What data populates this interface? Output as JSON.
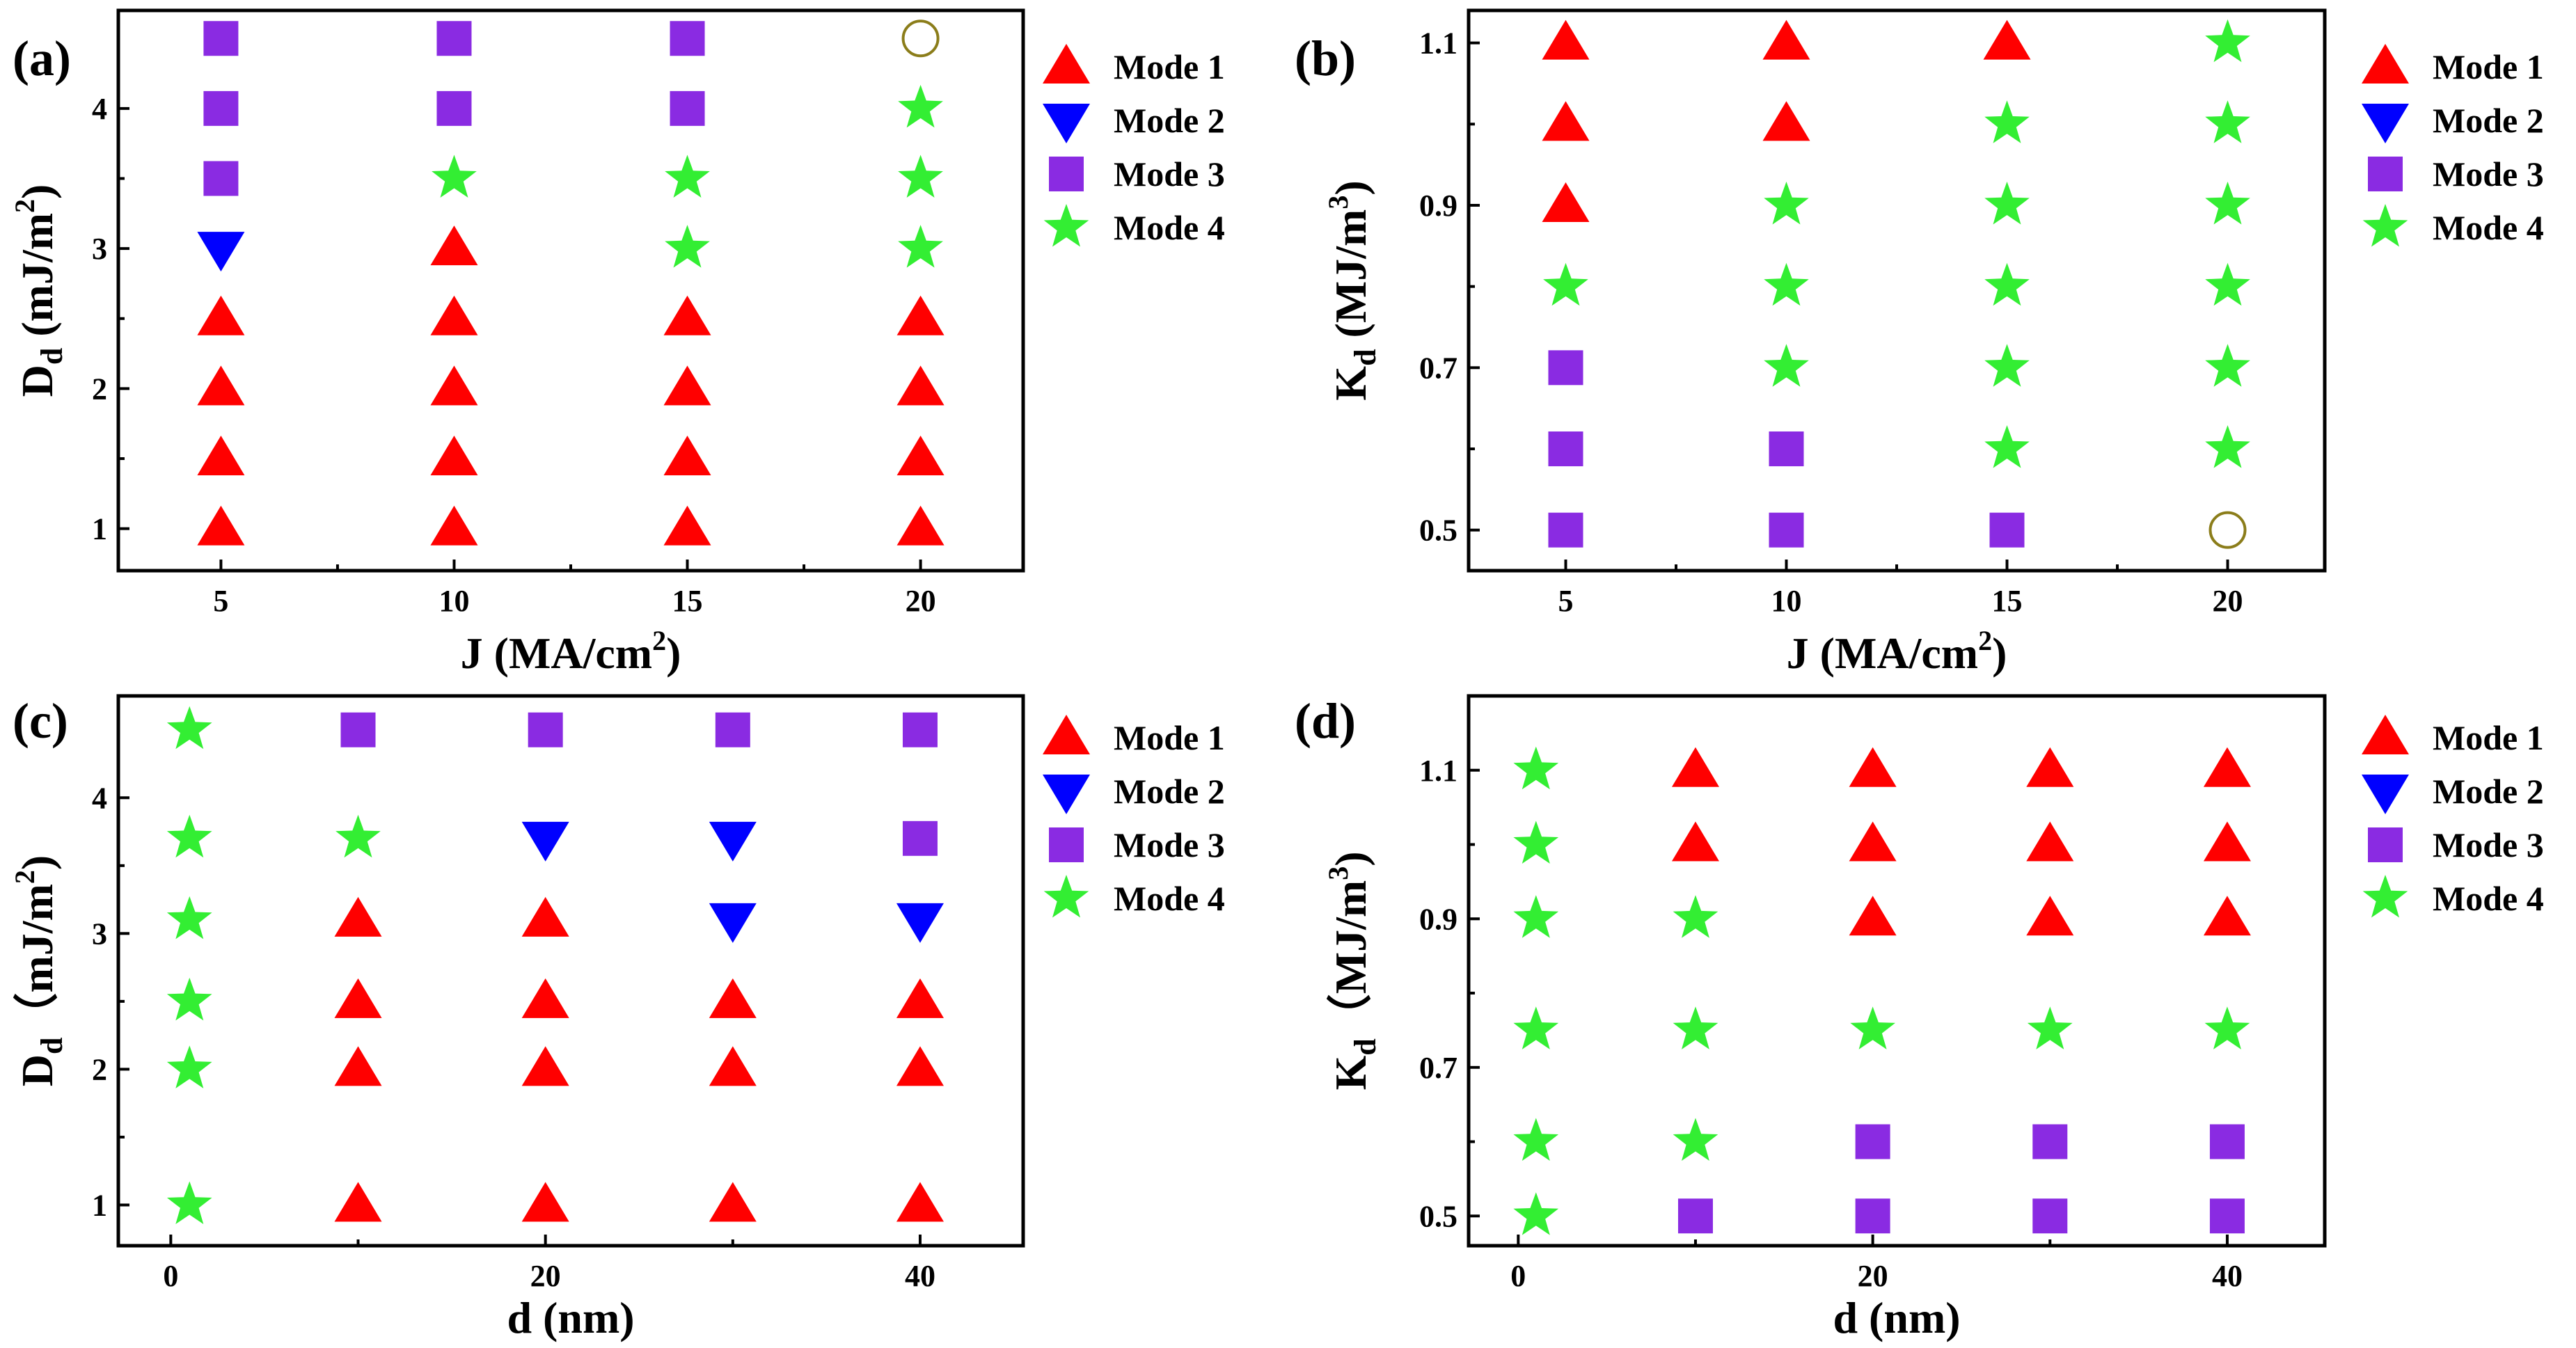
{
  "chart_data": [
    {
      "type": "scatter",
      "panel_label": "(a)",
      "xlabel": "J (MA/cm",
      "xlabel_sup": "2",
      "xlabel_end": ")",
      "ylabel": "D",
      "ylabel_sub": "d",
      "ylabel_units": " (mJ/m",
      "ylabel_sup": "2",
      "ylabel_end": ")",
      "xlim": [
        2.8,
        22.2
      ],
      "ylim": [
        0.7,
        4.7
      ],
      "xticks": [
        5,
        10,
        15,
        20
      ],
      "xtick_labels": [
        "5",
        "10",
        "15",
        "20"
      ],
      "yticks": [
        1,
        2,
        3,
        4
      ],
      "ytick_labels": [
        "1",
        "2",
        "3",
        "4"
      ],
      "legend_position": "right",
      "legend": [
        {
          "mode": 1,
          "label": "Mode 1"
        },
        {
          "mode": 2,
          "label": "Mode 2"
        },
        {
          "mode": 3,
          "label": "Mode 3"
        },
        {
          "mode": 4,
          "label": "Mode 4"
        }
      ],
      "points": [
        {
          "x": 5,
          "y": 1,
          "mode": 1
        },
        {
          "x": 5,
          "y": 1.5,
          "mode": 1
        },
        {
          "x": 5,
          "y": 2,
          "mode": 1
        },
        {
          "x": 5,
          "y": 2.5,
          "mode": 1
        },
        {
          "x": 5,
          "y": 3,
          "mode": 2
        },
        {
          "x": 5,
          "y": 3.5,
          "mode": 3
        },
        {
          "x": 5,
          "y": 4,
          "mode": 3
        },
        {
          "x": 5,
          "y": 4.5,
          "mode": 3
        },
        {
          "x": 10,
          "y": 1,
          "mode": 1
        },
        {
          "x": 10,
          "y": 1.5,
          "mode": 1
        },
        {
          "x": 10,
          "y": 2,
          "mode": 1
        },
        {
          "x": 10,
          "y": 2.5,
          "mode": 1
        },
        {
          "x": 10,
          "y": 3,
          "mode": 1
        },
        {
          "x": 10,
          "y": 3.5,
          "mode": 4
        },
        {
          "x": 10,
          "y": 4,
          "mode": 3
        },
        {
          "x": 10,
          "y": 4.5,
          "mode": 3
        },
        {
          "x": 15,
          "y": 1,
          "mode": 1
        },
        {
          "x": 15,
          "y": 1.5,
          "mode": 1
        },
        {
          "x": 15,
          "y": 2,
          "mode": 1
        },
        {
          "x": 15,
          "y": 2.5,
          "mode": 1
        },
        {
          "x": 15,
          "y": 3,
          "mode": 4
        },
        {
          "x": 15,
          "y": 3.5,
          "mode": 4
        },
        {
          "x": 15,
          "y": 4,
          "mode": 3
        },
        {
          "x": 15,
          "y": 4.5,
          "mode": 3
        },
        {
          "x": 20,
          "y": 1,
          "mode": 1
        },
        {
          "x": 20,
          "y": 1.5,
          "mode": 1
        },
        {
          "x": 20,
          "y": 2,
          "mode": 1
        },
        {
          "x": 20,
          "y": 2.5,
          "mode": 1
        },
        {
          "x": 20,
          "y": 3,
          "mode": 4
        },
        {
          "x": 20,
          "y": 3.5,
          "mode": 4
        },
        {
          "x": 20,
          "y": 4,
          "mode": 4
        },
        {
          "x": 20,
          "y": 4.5,
          "mode": 0
        }
      ]
    },
    {
      "type": "scatter",
      "panel_label": "(b)",
      "xlabel": "J (MA/cm",
      "xlabel_sup": "2",
      "xlabel_end": ")",
      "ylabel": "K",
      "ylabel_sub": "d",
      "ylabel_units": " (MJ/m",
      "ylabel_sup": "3",
      "ylabel_end": ")",
      "xlim": [
        2.8,
        22.2
      ],
      "ylim": [
        0.45,
        1.14
      ],
      "xticks": [
        5,
        10,
        15,
        20
      ],
      "xtick_labels": [
        "5",
        "10",
        "15",
        "20"
      ],
      "yticks": [
        0.5,
        0.7,
        0.9,
        1.1
      ],
      "ytick_labels": [
        "0.5",
        "0.7",
        "0.9",
        "1.1"
      ],
      "legend_position": "right",
      "legend": [
        {
          "mode": 1,
          "label": "Mode 1"
        },
        {
          "mode": 2,
          "label": "Mode 2"
        },
        {
          "mode": 3,
          "label": "Mode 3"
        },
        {
          "mode": 4,
          "label": "Mode 4"
        }
      ],
      "points": [
        {
          "x": 5,
          "y": 0.5,
          "mode": 3
        },
        {
          "x": 5,
          "y": 0.6,
          "mode": 3
        },
        {
          "x": 5,
          "y": 0.7,
          "mode": 3
        },
        {
          "x": 5,
          "y": 0.8,
          "mode": 4
        },
        {
          "x": 5,
          "y": 0.9,
          "mode": 1
        },
        {
          "x": 5,
          "y": 1.0,
          "mode": 1
        },
        {
          "x": 5,
          "y": 1.1,
          "mode": 1
        },
        {
          "x": 10,
          "y": 0.5,
          "mode": 3
        },
        {
          "x": 10,
          "y": 0.6,
          "mode": 3
        },
        {
          "x": 10,
          "y": 0.7,
          "mode": 4
        },
        {
          "x": 10,
          "y": 0.8,
          "mode": 4
        },
        {
          "x": 10,
          "y": 0.9,
          "mode": 4
        },
        {
          "x": 10,
          "y": 1.0,
          "mode": 1
        },
        {
          "x": 10,
          "y": 1.1,
          "mode": 1
        },
        {
          "x": 15,
          "y": 0.5,
          "mode": 3
        },
        {
          "x": 15,
          "y": 0.6,
          "mode": 4
        },
        {
          "x": 15,
          "y": 0.7,
          "mode": 4
        },
        {
          "x": 15,
          "y": 0.8,
          "mode": 4
        },
        {
          "x": 15,
          "y": 0.9,
          "mode": 4
        },
        {
          "x": 15,
          "y": 1.0,
          "mode": 4
        },
        {
          "x": 15,
          "y": 1.1,
          "mode": 1
        },
        {
          "x": 20,
          "y": 0.5,
          "mode": 0
        },
        {
          "x": 20,
          "y": 0.6,
          "mode": 4
        },
        {
          "x": 20,
          "y": 0.7,
          "mode": 4
        },
        {
          "x": 20,
          "y": 0.8,
          "mode": 4
        },
        {
          "x": 20,
          "y": 0.9,
          "mode": 4
        },
        {
          "x": 20,
          "y": 1.0,
          "mode": 4
        },
        {
          "x": 20,
          "y": 1.1,
          "mode": 4
        }
      ]
    },
    {
      "type": "scatter",
      "panel_label": "(c)",
      "xlabel": "d (nm)",
      "xlabel_sup": "",
      "xlabel_end": "",
      "ylabel": "D",
      "ylabel_sub": "d",
      "ylabel_units": "（mJ/m",
      "ylabel_sup": "2",
      "ylabel_end": ")",
      "xlim": [
        -2.8,
        45.5
      ],
      "ylim": [
        0.7,
        4.75
      ],
      "xticks": [
        0,
        20,
        40
      ],
      "xtick_labels": [
        "0",
        "20",
        "40"
      ],
      "yticks": [
        1,
        2,
        3,
        4
      ],
      "ytick_labels": [
        "1",
        "2",
        "3",
        "4"
      ],
      "legend_position": "right",
      "legend": [
        {
          "mode": 1,
          "label": "Mode 1"
        },
        {
          "mode": 2,
          "label": "Mode 2"
        },
        {
          "mode": 3,
          "label": "Mode 3"
        },
        {
          "mode": 4,
          "label": "Mode 4"
        }
      ],
      "points": [
        {
          "x": 1,
          "y": 1,
          "mode": 4
        },
        {
          "x": 1,
          "y": 2,
          "mode": 4
        },
        {
          "x": 1,
          "y": 2.5,
          "mode": 4
        },
        {
          "x": 1,
          "y": 3.1,
          "mode": 4
        },
        {
          "x": 1,
          "y": 3.7,
          "mode": 4
        },
        {
          "x": 1,
          "y": 4.5,
          "mode": 4
        },
        {
          "x": 10,
          "y": 1,
          "mode": 1
        },
        {
          "x": 10,
          "y": 2,
          "mode": 1
        },
        {
          "x": 10,
          "y": 2.5,
          "mode": 1
        },
        {
          "x": 10,
          "y": 3.1,
          "mode": 1
        },
        {
          "x": 10,
          "y": 3.7,
          "mode": 4
        },
        {
          "x": 10,
          "y": 4.5,
          "mode": 3
        },
        {
          "x": 20,
          "y": 1,
          "mode": 1
        },
        {
          "x": 20,
          "y": 2,
          "mode": 1
        },
        {
          "x": 20,
          "y": 2.5,
          "mode": 1
        },
        {
          "x": 20,
          "y": 3.1,
          "mode": 1
        },
        {
          "x": 20,
          "y": 3.7,
          "mode": 2
        },
        {
          "x": 20,
          "y": 4.5,
          "mode": 3
        },
        {
          "x": 30,
          "y": 1,
          "mode": 1
        },
        {
          "x": 30,
          "y": 2,
          "mode": 1
        },
        {
          "x": 30,
          "y": 2.5,
          "mode": 1
        },
        {
          "x": 30,
          "y": 3.1,
          "mode": 2
        },
        {
          "x": 30,
          "y": 3.7,
          "mode": 2
        },
        {
          "x": 30,
          "y": 4.5,
          "mode": 3
        },
        {
          "x": 40,
          "y": 1,
          "mode": 1
        },
        {
          "x": 40,
          "y": 2,
          "mode": 1
        },
        {
          "x": 40,
          "y": 2.5,
          "mode": 1
        },
        {
          "x": 40,
          "y": 3.1,
          "mode": 2
        },
        {
          "x": 40,
          "y": 3.7,
          "mode": 3
        },
        {
          "x": 40,
          "y": 4.5,
          "mode": 3
        }
      ]
    },
    {
      "type": "scatter",
      "panel_label": "(d)",
      "xlabel": "d (nm)",
      "xlabel_sup": "",
      "xlabel_end": "",
      "ylabel": "K",
      "ylabel_sub": "d",
      "ylabel_units": "（MJ/m",
      "ylabel_sup": "3",
      "ylabel_end": ")",
      "xlim": [
        -2.8,
        45.5
      ],
      "ylim": [
        0.46,
        1.2
      ],
      "xticks": [
        0,
        20,
        40
      ],
      "xtick_labels": [
        "0",
        "20",
        "40"
      ],
      "yticks": [
        0.5,
        0.7,
        0.9,
        1.1
      ],
      "ytick_labels": [
        "0.5",
        "0.7",
        "0.9",
        "1.1"
      ],
      "legend_position": "right",
      "legend": [
        {
          "mode": 1,
          "label": "Mode 1"
        },
        {
          "mode": 2,
          "label": "Mode 2"
        },
        {
          "mode": 3,
          "label": "Mode 3"
        },
        {
          "mode": 4,
          "label": "Mode 4"
        }
      ],
      "points": [
        {
          "x": 1,
          "y": 0.5,
          "mode": 4
        },
        {
          "x": 1,
          "y": 0.6,
          "mode": 4
        },
        {
          "x": 1,
          "y": 0.75,
          "mode": 4
        },
        {
          "x": 1,
          "y": 0.9,
          "mode": 4
        },
        {
          "x": 1,
          "y": 1.0,
          "mode": 4
        },
        {
          "x": 1,
          "y": 1.1,
          "mode": 4
        },
        {
          "x": 10,
          "y": 0.5,
          "mode": 3
        },
        {
          "x": 10,
          "y": 0.6,
          "mode": 4
        },
        {
          "x": 10,
          "y": 0.75,
          "mode": 4
        },
        {
          "x": 10,
          "y": 0.9,
          "mode": 4
        },
        {
          "x": 10,
          "y": 1.0,
          "mode": 1
        },
        {
          "x": 10,
          "y": 1.1,
          "mode": 1
        },
        {
          "x": 20,
          "y": 0.5,
          "mode": 3
        },
        {
          "x": 20,
          "y": 0.6,
          "mode": 3
        },
        {
          "x": 20,
          "y": 0.75,
          "mode": 4
        },
        {
          "x": 20,
          "y": 0.9,
          "mode": 1
        },
        {
          "x": 20,
          "y": 1.0,
          "mode": 1
        },
        {
          "x": 20,
          "y": 1.1,
          "mode": 1
        },
        {
          "x": 30,
          "y": 0.5,
          "mode": 3
        },
        {
          "x": 30,
          "y": 0.6,
          "mode": 3
        },
        {
          "x": 30,
          "y": 0.75,
          "mode": 4
        },
        {
          "x": 30,
          "y": 0.9,
          "mode": 1
        },
        {
          "x": 30,
          "y": 1.0,
          "mode": 1
        },
        {
          "x": 30,
          "y": 1.1,
          "mode": 1
        },
        {
          "x": 40,
          "y": 0.5,
          "mode": 3
        },
        {
          "x": 40,
          "y": 0.6,
          "mode": 3
        },
        {
          "x": 40,
          "y": 0.75,
          "mode": 4
        },
        {
          "x": 40,
          "y": 0.9,
          "mode": 1
        },
        {
          "x": 40,
          "y": 1.0,
          "mode": 1
        },
        {
          "x": 40,
          "y": 1.1,
          "mode": 1
        }
      ]
    }
  ],
  "mode_styles": {
    "0": {
      "name": "open-circle-marker",
      "color": "#8B7D1A"
    },
    "1": {
      "name": "up-triangle-marker",
      "color": "#FF0000"
    },
    "2": {
      "name": "down-triangle-marker",
      "color": "#0000FF"
    },
    "3": {
      "name": "square-marker",
      "color": "#8A2BE2"
    },
    "4": {
      "name": "star-marker",
      "color": "#33EE33"
    }
  }
}
